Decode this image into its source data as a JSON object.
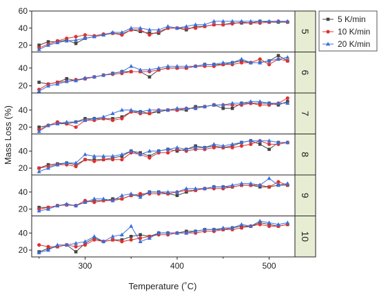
{
  "chart_data": {
    "type": "line",
    "xlabel": "Temperature (˚C)",
    "ylabel": "Mass Loss (%)",
    "xlim": [
      242,
      528
    ],
    "x_ticks": [
      300,
      400,
      500
    ],
    "legend_placement": "top-right",
    "grid": false,
    "series_meta": [
      {
        "name": "5 K/min",
        "color": "#444444",
        "marker": "square"
      },
      {
        "name": "10 K/min",
        "color": "#e03030",
        "marker": "circle"
      },
      {
        "name": "20 K/min",
        "color": "#3a6fd8",
        "marker": "triangle"
      }
    ],
    "x": [
      250,
      260,
      270,
      280,
      290,
      300,
      310,
      320,
      330,
      340,
      350,
      360,
      370,
      380,
      390,
      400,
      410,
      420,
      430,
      440,
      450,
      460,
      470,
      480,
      490,
      500,
      510,
      520
    ],
    "panels": [
      {
        "strip_label": "5",
        "ylim": [
          12,
          60
        ],
        "y_ticks": [
          20,
          40,
          60
        ],
        "y_tick_labels": [
          "20",
          "40",
          "60"
        ],
        "series": [
          {
            "name": "5 K/min",
            "values": [
              20,
              24,
              24,
              26,
              22,
              28,
              30,
              32,
              34,
              33,
              38,
              36,
              34,
              34,
              40,
              40,
              38,
              42,
              42,
              44,
              44,
              46,
              46,
              46,
              48,
              47,
              47,
              47
            ]
          },
          {
            "name": "10 K/min",
            "values": [
              17,
              21,
              25,
              28,
              30,
              32,
              31,
              33,
              34,
              32,
              38,
              38,
              32,
              36,
              40,
              40,
              40,
              40,
              42,
              44,
              44,
              45,
              47,
              46,
              46,
              47,
              48,
              47
            ]
          },
          {
            "name": "20 K/min",
            "values": [
              15,
              20,
              23,
              25,
              26,
              28,
              30,
              32,
              35,
              35,
              40,
              40,
              38,
              38,
              42,
              40,
              42,
              44,
              44,
              48,
              48,
              48,
              48,
              48,
              48,
              48,
              48,
              48
            ]
          }
        ]
      },
      {
        "strip_label": "6",
        "ylim": [
          12,
          58
        ],
        "y_ticks": [
          20,
          40
        ],
        "y_tick_labels": [
          "20",
          "40"
        ],
        "series": [
          {
            "name": "5 K/min",
            "values": [
              24,
              22,
              24,
              28,
              26,
              28,
              30,
              32,
              34,
              36,
              36,
              36,
              30,
              38,
              40,
              40,
              40,
              42,
              44,
              44,
              44,
              46,
              48,
              46,
              46,
              48,
              54,
              48
            ]
          },
          {
            "name": "10 K/min",
            "values": [
              16,
              22,
              24,
              25,
              27,
              28,
              30,
              32,
              33,
              34,
              36,
              36,
              36,
              38,
              40,
              40,
              40,
              42,
              42,
              42,
              44,
              44,
              46,
              46,
              50,
              44,
              50,
              48
            ]
          },
          {
            "name": "20 K/min",
            "values": [
              14,
              20,
              22,
              25,
              26,
              29,
              30,
              32,
              34,
              36,
              42,
              38,
              38,
              40,
              42,
              42,
              42,
              42,
              44,
              44,
              46,
              46,
              50,
              46,
              46,
              48,
              50,
              52
            ]
          }
        ]
      },
      {
        "strip_label": "7",
        "ylim": [
          12,
          60
        ],
        "y_ticks": [
          20,
          40
        ],
        "y_tick_labels": [
          "20",
          "40"
        ],
        "series": [
          {
            "name": "5 K/min",
            "values": [
              20,
              22,
              24,
              24,
              26,
              30,
              30,
              30,
              30,
              32,
              38,
              38,
              36,
              38,
              40,
              40,
              40,
              44,
              44,
              46,
              42,
              42,
              48,
              48,
              48,
              48,
              46,
              50
            ]
          },
          {
            "name": "10 K/min",
            "values": [
              17,
              22,
              26,
              24,
              20,
              28,
              28,
              30,
              28,
              30,
              38,
              36,
              36,
              40,
              40,
              40,
              42,
              42,
              44,
              46,
              46,
              46,
              46,
              48,
              46,
              46,
              48,
              54
            ]
          },
          {
            "name": "20 K/min",
            "values": [
              15,
              22,
              24,
              26,
              26,
              28,
              30,
              32,
              36,
              40,
              40,
              38,
              40,
              40,
              40,
              42,
              42,
              42,
              44,
              46,
              46,
              48,
              48,
              50,
              50,
              48,
              48,
              48
            ]
          }
        ]
      },
      {
        "strip_label": "8",
        "ylim": [
          12,
          60
        ],
        "y_ticks": [
          20,
          40
        ],
        "y_tick_labels": [
          "20",
          "40"
        ],
        "series": [
          {
            "name": "5 K/min",
            "values": [
              20,
              24,
              25,
              26,
              24,
              30,
              30,
              30,
              32,
              34,
              40,
              38,
              34,
              40,
              42,
              40,
              42,
              46,
              44,
              46,
              44,
              46,
              50,
              52,
              48,
              42,
              50,
              50
            ]
          },
          {
            "name": "10 K/min",
            "values": [
              20,
              22,
              24,
              24,
              22,
              30,
              28,
              30,
              30,
              30,
              38,
              36,
              32,
              38,
              38,
              42,
              40,
              42,
              42,
              44,
              44,
              44,
              46,
              48,
              52,
              48,
              48,
              50
            ]
          },
          {
            "name": "20 K/min",
            "values": [
              16,
              20,
              24,
              26,
              26,
              36,
              34,
              34,
              34,
              36,
              40,
              36,
              40,
              40,
              42,
              44,
              42,
              44,
              44,
              48,
              46,
              48,
              50,
              52,
              52,
              52,
              50,
              50
            ]
          }
        ]
      },
      {
        "strip_label": "9",
        "ylim": [
          12,
          60
        ],
        "y_ticks": [
          20,
          40
        ],
        "y_tick_labels": [
          "20",
          "40"
        ],
        "series": [
          {
            "name": "5 K/min",
            "values": [
              22,
              22,
              24,
              25,
              24,
              28,
              30,
              30,
              32,
              32,
              36,
              36,
              40,
              40,
              38,
              36,
              40,
              42,
              44,
              46,
              46,
              46,
              48,
              48,
              46,
              46,
              48,
              48
            ]
          },
          {
            "name": "10 K/min",
            "values": [
              20,
              22,
              24,
              25,
              24,
              30,
              28,
              30,
              30,
              32,
              36,
              38,
              38,
              38,
              38,
              40,
              42,
              42,
              44,
              44,
              44,
              46,
              48,
              48,
              48,
              46,
              52,
              48
            ]
          },
          {
            "name": "20 K/min",
            "values": [
              18,
              20,
              24,
              26,
              24,
              28,
              32,
              32,
              30,
              36,
              38,
              34,
              40,
              40,
              40,
              40,
              44,
              44,
              44,
              46,
              46,
              48,
              50,
              50,
              48,
              56,
              48,
              50
            ]
          }
        ]
      },
      {
        "strip_label": "10",
        "ylim": [
          12,
          60
        ],
        "y_ticks": [
          20,
          40
        ],
        "y_tick_labels": [
          "20",
          "40"
        ],
        "series": [
          {
            "name": "5 K/min",
            "values": [
              18,
              22,
              24,
              26,
              18,
              28,
              34,
              30,
              32,
              32,
              36,
              38,
              36,
              40,
              40,
              40,
              42,
              42,
              44,
              44,
              44,
              46,
              48,
              48,
              52,
              50,
              48,
              50
            ]
          },
          {
            "name": "10 K/min",
            "values": [
              26,
              24,
              24,
              26,
              24,
              26,
              32,
              30,
              32,
              30,
              32,
              34,
              36,
              38,
              38,
              40,
              40,
              40,
              42,
              42,
              44,
              44,
              46,
              48,
              50,
              48,
              48,
              50
            ]
          },
          {
            "name": "20 K/min",
            "values": [
              17,
              20,
              26,
              26,
              28,
              30,
              36,
              30,
              36,
              38,
              48,
              30,
              34,
              40,
              40,
              40,
              40,
              42,
              44,
              44,
              46,
              46,
              50,
              48,
              54,
              52,
              50,
              52
            ]
          }
        ]
      }
    ]
  }
}
